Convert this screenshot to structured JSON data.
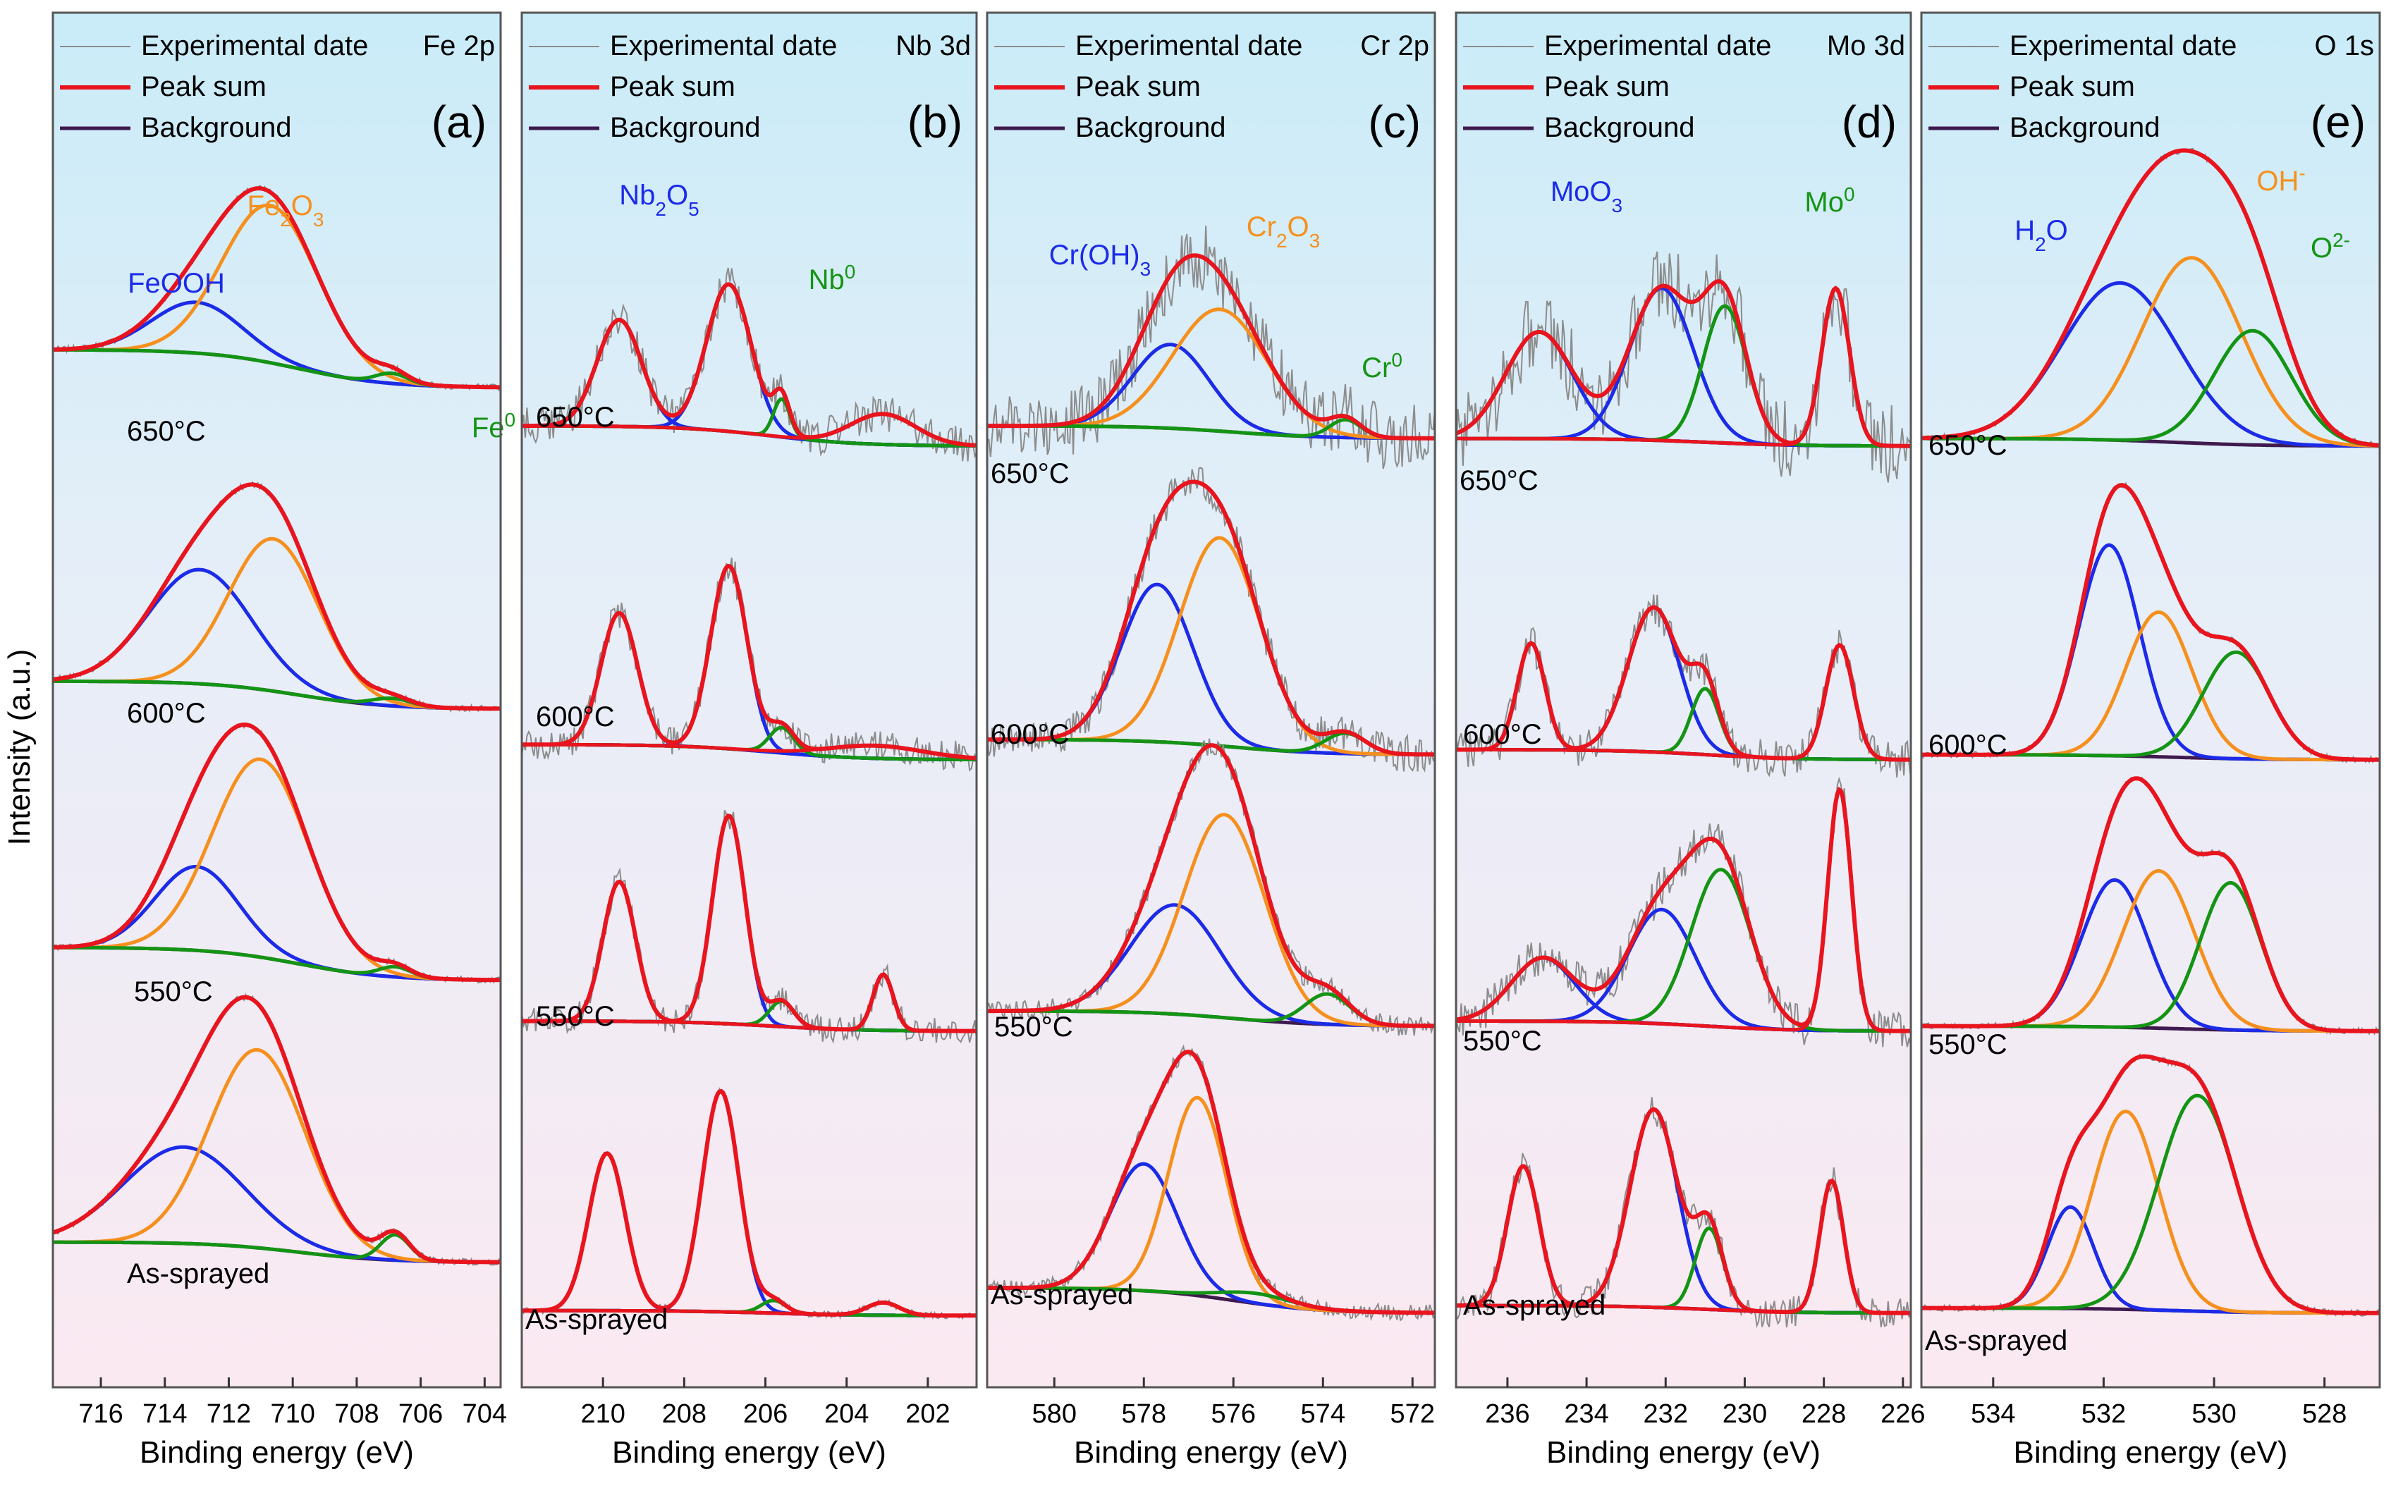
{
  "figure": {
    "y_axis_label": "Intensity (a.u.)",
    "x_axis_label": "Binding energy (eV)"
  },
  "colors": {
    "experimental": "#8c8c8c",
    "peak_sum": "#e8141e",
    "background": "#3f1a4e",
    "blue": "#1c2be8",
    "orange": "#f5901e",
    "green": "#149414",
    "bg_top": "#c9ecf8",
    "bg_bottom": "#fbe9f1"
  },
  "legend": {
    "experimental": "Experimental date",
    "peak_sum": "Peak sum",
    "background": "Background"
  },
  "chart_data": [
    {
      "type": "line",
      "panel": "(a)",
      "title": "Fe 2p",
      "xlabel": "Binding energy (eV)",
      "ylabel": "Intensity (a.u.)",
      "xlim": [
        717.5,
        703.5
      ],
      "xticks": [
        716,
        714,
        712,
        710,
        708,
        706,
        704
      ],
      "xtick_labels": [
        "716",
        "714",
        "712",
        "710",
        "708",
        "706",
        "704"
      ],
      "labels": [
        {
          "text": "FeOOH",
          "color": "blue"
        },
        {
          "text": "Fe",
          "sub": "2",
          "text2": "O",
          "sub2": "3",
          "color": "orange"
        },
        {
          "text": "Fe",
          "sup": "0",
          "color": "green"
        }
      ],
      "series": [
        {
          "name": "650°C",
          "noise": 0,
          "bg": [
            0.25,
            0.4
          ],
          "components": [
            {
              "color": "blue",
              "center": 713.0,
              "height": 0.2,
              "width": 1.4
            },
            {
              "color": "orange",
              "center": 710.7,
              "height": 0.62,
              "width": 1.5
            },
            {
              "color": "green",
              "center": 706.9,
              "height": 0.04,
              "width": 0.5
            }
          ]
        },
        {
          "name": "600°C",
          "noise": 0,
          "bg": [
            0.22,
            0.33
          ],
          "components": [
            {
              "color": "blue",
              "center": 712.9,
              "height": 0.45,
              "width": 1.6
            },
            {
              "color": "orange",
              "center": 710.6,
              "height": 0.6,
              "width": 1.4
            },
            {
              "color": "green",
              "center": 706.9,
              "height": 0.03,
              "width": 0.6
            }
          ]
        },
        {
          "name": "550°C",
          "noise": 0,
          "bg": [
            0.22,
            0.35
          ],
          "components": [
            {
              "color": "blue",
              "center": 713.0,
              "height": 0.33,
              "width": 1.3
            },
            {
              "color": "orange",
              "center": 711.0,
              "height": 0.78,
              "width": 1.5
            },
            {
              "color": "green",
              "center": 706.8,
              "height": 0.04,
              "width": 0.5
            }
          ]
        },
        {
          "name": "As-sprayed",
          "noise": 0,
          "bg": [
            0.22,
            0.3
          ],
          "components": [
            {
              "color": "blue",
              "center": 713.4,
              "height": 0.38,
              "width": 1.9
            },
            {
              "color": "orange",
              "center": 711.1,
              "height": 0.78,
              "width": 1.5
            },
            {
              "color": "green",
              "center": 706.8,
              "height": 0.1,
              "width": 0.45
            }
          ]
        }
      ]
    },
    {
      "type": "line",
      "panel": "(b)",
      "title": "Nb 3d",
      "xlabel": "Binding energy (eV)",
      "ylabel": "Intensity (a.u.)",
      "xlim": [
        212.0,
        200.8
      ],
      "xticks": [
        210,
        208,
        206,
        204,
        202
      ],
      "xtick_labels": [
        "210",
        "208",
        "206",
        "204",
        "202"
      ],
      "labels": [
        {
          "text": "Nb",
          "sub": "2",
          "text2": "O",
          "sub2": "5",
          "color": "blue"
        },
        {
          "text": "Nb",
          "sup": "0",
          "color": "green"
        }
      ],
      "series": [
        {
          "name": "650°C",
          "noise": 0.06,
          "bg": [
            0.02,
            0.1
          ],
          "components": [
            {
              "color": "blue",
              "center": 209.6,
              "height": 0.42,
              "width": 0.55
            },
            {
              "color": "blue",
              "center": 206.9,
              "height": 0.58,
              "width": 0.55
            },
            {
              "color": "green",
              "center": 205.6,
              "height": 0.15,
              "width": 0.2
            },
            {
              "color": "red",
              "center": 203.1,
              "height": 0.12,
              "width": 0.8
            }
          ]
        },
        {
          "name": "600°C",
          "noise": 0.05,
          "bg": [
            0.02,
            0.08
          ],
          "components": [
            {
              "color": "blue",
              "center": 209.6,
              "height": 0.52,
              "width": 0.45
            },
            {
              "color": "blue",
              "center": 206.9,
              "height": 0.72,
              "width": 0.45
            },
            {
              "color": "green",
              "center": 205.6,
              "height": 0.1,
              "width": 0.3
            },
            {
              "color": "red",
              "center": 203.3,
              "height": 0.05,
              "width": 1.2
            }
          ]
        },
        {
          "name": "550°C",
          "noise": 0.04,
          "bg": [
            0.02,
            0.06
          ],
          "components": [
            {
              "color": "blue",
              "center": 209.6,
              "height": 0.55,
              "width": 0.4
            },
            {
              "color": "blue",
              "center": 206.9,
              "height": 0.82,
              "width": 0.4
            },
            {
              "color": "green",
              "center": 205.6,
              "height": 0.1,
              "width": 0.3
            },
            {
              "color": "red",
              "center": 203.1,
              "height": 0.22,
              "width": 0.25
            }
          ]
        },
        {
          "name": "As-sprayed",
          "noise": 0,
          "bg": [
            0.01,
            0.03
          ],
          "components": [
            {
              "color": "blue",
              "center": 209.9,
              "height": 0.62,
              "width": 0.45
            },
            {
              "color": "blue",
              "center": 207.1,
              "height": 0.87,
              "width": 0.45
            },
            {
              "color": "green",
              "center": 205.8,
              "height": 0.05,
              "width": 0.3
            },
            {
              "color": "red",
              "center": 203.1,
              "height": 0.05,
              "width": 0.4
            }
          ]
        }
      ]
    },
    {
      "type": "line",
      "panel": "(c)",
      "title": "Cr 2p",
      "xlabel": "Binding energy (eV)",
      "ylabel": "Intensity (a.u.)",
      "xlim": [
        581.5,
        571.5
      ],
      "xticks": [
        580,
        578,
        576,
        574,
        572
      ],
      "xtick_labels": [
        "580",
        "578",
        "576",
        "574",
        "572"
      ],
      "labels": [
        {
          "text": "Cr(OH)",
          "sub": "3",
          "color": "blue"
        },
        {
          "text": "Cr",
          "sub": "2",
          "text2": "O",
          "sub2": "3",
          "color": "orange"
        },
        {
          "text": "Cr",
          "sup": "0",
          "color": "green"
        }
      ],
      "series": [
        {
          "name": "650°C",
          "noise": 0.12,
          "bg": [
            0.05,
            0.1
          ],
          "components": [
            {
              "color": "blue",
              "center": 577.4,
              "height": 0.33,
              "width": 0.85
            },
            {
              "color": "orange",
              "center": 576.3,
              "height": 0.48,
              "width": 1.05
            },
            {
              "color": "green",
              "center": 573.5,
              "height": 0.07,
              "width": 0.35
            }
          ]
        },
        {
          "name": "600°C",
          "noise": 0.06,
          "bg": [
            0.04,
            0.1
          ],
          "components": [
            {
              "color": "blue",
              "center": 577.7,
              "height": 0.62,
              "width": 0.8
            },
            {
              "color": "orange",
              "center": 576.3,
              "height": 0.82,
              "width": 0.9
            },
            {
              "color": "green",
              "center": 573.5,
              "height": 0.08,
              "width": 0.45
            }
          ]
        },
        {
          "name": "550°C",
          "noise": 0.03,
          "bg": [
            0.04,
            0.1
          ],
          "components": [
            {
              "color": "blue",
              "center": 577.3,
              "height": 0.43,
              "width": 1.0
            },
            {
              "color": "orange",
              "center": 576.2,
              "height": 0.8,
              "width": 0.9
            },
            {
              "color": "green",
              "center": 573.9,
              "height": 0.12,
              "width": 0.5
            }
          ]
        },
        {
          "name": "As-sprayed",
          "noise": 0.02,
          "bg": [
            0.02,
            0.12
          ],
          "components": [
            {
              "color": "blue",
              "center": 578.0,
              "height": 0.5,
              "width": 0.75
            },
            {
              "color": "orange",
              "center": 576.8,
              "height": 0.78,
              "width": 0.65
            },
            {
              "color": "green",
              "center": 575.5,
              "height": 0.04,
              "width": 0.8
            }
          ]
        }
      ]
    },
    {
      "type": "line",
      "panel": "(d)",
      "title": "Mo 3d",
      "xlabel": "Binding energy (eV)",
      "ylabel": "Intensity (a.u.)",
      "xlim": [
        237.3,
        225.8
      ],
      "xticks": [
        236,
        234,
        232,
        230,
        228,
        226
      ],
      "xtick_labels": [
        "236",
        "234",
        "232",
        "230",
        "228",
        "226"
      ],
      "labels": [
        {
          "text": "MoO",
          "sub": "3",
          "color": "blue"
        },
        {
          "text": "Mo",
          "sup": "0",
          "color": "green"
        }
      ],
      "series": [
        {
          "name": "650°C",
          "noise": 0.15,
          "bg": [
            0.02,
            0.05
          ],
          "components": [
            {
              "color": "blue",
              "center": 235.2,
              "height": 0.42,
              "width": 0.85
            },
            {
              "color": "blue",
              "center": 232.1,
              "height": 0.6,
              "width": 0.8
            },
            {
              "color": "green",
              "center": 230.5,
              "height": 0.54,
              "width": 0.55
            },
            {
              "color": "red",
              "center": 227.7,
              "height": 0.62,
              "width": 0.35
            }
          ]
        },
        {
          "name": "600°C",
          "noise": 0.06,
          "bg": [
            0.02,
            0.06
          ],
          "components": [
            {
              "color": "blue",
              "center": 235.4,
              "height": 0.42,
              "width": 0.35
            },
            {
              "color": "blue",
              "center": 232.3,
              "height": 0.57,
              "width": 0.65
            },
            {
              "color": "green",
              "center": 231.0,
              "height": 0.26,
              "width": 0.35
            },
            {
              "color": "red",
              "center": 227.6,
              "height": 0.45,
              "width": 0.35
            }
          ]
        },
        {
          "name": "550°C",
          "noise": 0.07,
          "bg": [
            0.02,
            0.06
          ],
          "components": [
            {
              "color": "blue",
              "center": 235.1,
              "height": 0.25,
              "width": 0.8
            },
            {
              "color": "blue",
              "center": 232.1,
              "height": 0.45,
              "width": 0.85
            },
            {
              "color": "green",
              "center": 230.6,
              "height": 0.62,
              "width": 0.75
            },
            {
              "color": "red",
              "center": 227.6,
              "height": 0.95,
              "width": 0.3
            }
          ]
        },
        {
          "name": "As-sprayed",
          "noise": 0.05,
          "bg": [
            0.02,
            0.05
          ],
          "components": [
            {
              "color": "blue",
              "center": 235.6,
              "height": 0.55,
              "width": 0.4
            },
            {
              "color": "blue",
              "center": 232.3,
              "height": 0.78,
              "width": 0.6
            },
            {
              "color": "green",
              "center": 230.9,
              "height": 0.32,
              "width": 0.35
            },
            {
              "color": "red",
              "center": 227.8,
              "height": 0.52,
              "width": 0.3
            }
          ]
        }
      ]
    },
    {
      "type": "line",
      "panel": "(e)",
      "title": "O 1s",
      "xlabel": "Binding energy (eV)",
      "ylabel": "Intensity (a.u.)",
      "xlim": [
        535.3,
        527.0
      ],
      "xticks": [
        534,
        532,
        530,
        528
      ],
      "xtick_labels": [
        "534",
        "532",
        "530",
        "528"
      ],
      "labels": [
        {
          "text": "H",
          "sub": "2",
          "text2": "O",
          "color": "blue"
        },
        {
          "text": "OH",
          "sup": "-",
          "color": "orange"
        },
        {
          "text": "O",
          "sup": "2-",
          "color": "green"
        }
      ],
      "series": [
        {
          "name": "650°C",
          "noise": 0,
          "bg": [
            0.02,
            0.05
          ],
          "components": [
            {
              "color": "blue",
              "center": 531.7,
              "height": 0.62,
              "width": 1.05
            },
            {
              "color": "orange",
              "center": 530.4,
              "height": 0.73,
              "width": 0.9
            },
            {
              "color": "green",
              "center": 529.3,
              "height": 0.45,
              "width": 0.7
            }
          ]
        },
        {
          "name": "600°C",
          "noise": 0,
          "bg": [
            0.02,
            0.04
          ],
          "components": [
            {
              "color": "blue",
              "center": 531.9,
              "height": 0.83,
              "width": 0.55
            },
            {
              "color": "orange",
              "center": 531.0,
              "height": 0.57,
              "width": 0.6
            },
            {
              "color": "green",
              "center": 529.6,
              "height": 0.42,
              "width": 0.6
            }
          ]
        },
        {
          "name": "550°C",
          "noise": 0,
          "bg": [
            0.02,
            0.04
          ],
          "components": [
            {
              "color": "blue",
              "center": 531.8,
              "height": 0.58,
              "width": 0.6
            },
            {
              "color": "orange",
              "center": 531.0,
              "height": 0.62,
              "width": 0.65
            },
            {
              "color": "green",
              "center": 529.7,
              "height": 0.58,
              "width": 0.55
            }
          ]
        },
        {
          "name": "As-sprayed",
          "noise": 0,
          "bg": [
            0.02,
            0.04
          ],
          "components": [
            {
              "color": "blue",
              "center": 532.6,
              "height": 0.4,
              "width": 0.42
            },
            {
              "color": "orange",
              "center": 531.6,
              "height": 0.78,
              "width": 0.6
            },
            {
              "color": "green",
              "center": 530.3,
              "height": 0.85,
              "width": 0.7
            }
          ]
        }
      ]
    }
  ]
}
